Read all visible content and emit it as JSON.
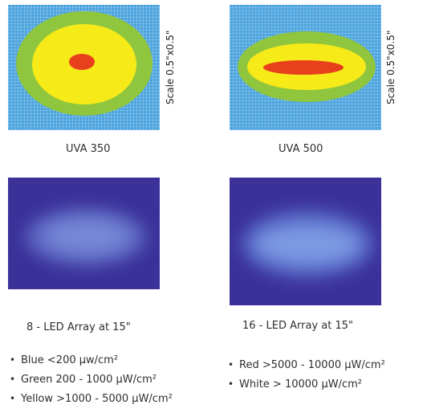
{
  "panels": {
    "uva350": {
      "caption": "UVA 350",
      "scale": "Scale 0.5\"x0.5\""
    },
    "uva500": {
      "caption": "UVA 500",
      "scale": "Scale 0.5\"x0.5\""
    },
    "led8": {
      "caption": "8 - LED Array at 15\""
    },
    "led16": {
      "caption": "16 - LED Array at 15\""
    }
  },
  "legend": {
    "left": [
      {
        "text": "Blue <200 µw/cm²"
      },
      {
        "text": "Green 200 - 1000 µW/cm²"
      },
      {
        "text": "Yellow >1000 - 5000 µW/cm²"
      }
    ],
    "right": [
      {
        "text": "Red >5000 - 10000 µW/cm²"
      },
      {
        "text": "White > 10000 µW/cm²"
      }
    ],
    "bullet": "•"
  },
  "colors": {
    "blue": "#4aa3de",
    "green": "#8fc63e",
    "yellow": "#f6ea18",
    "red": "#e8401c",
    "led_background": "#3b3199"
  }
}
